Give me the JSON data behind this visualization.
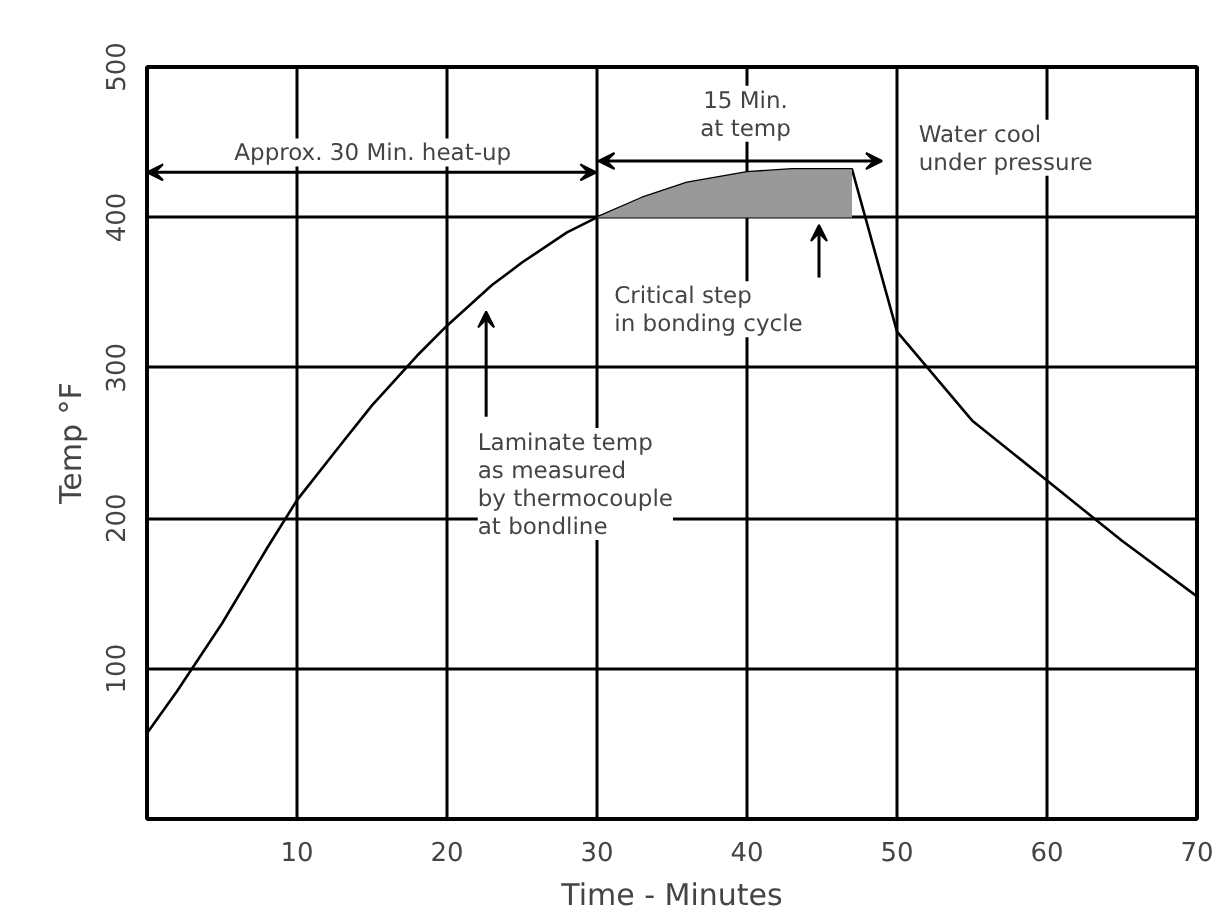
{
  "chart_data": {
    "type": "line",
    "xlabel": "Time - Minutes",
    "ylabel": "Temp °F",
    "xlim": [
      0,
      70
    ],
    "xticks": [
      10,
      20,
      30,
      40,
      50,
      60,
      70
    ],
    "ylim": [
      0,
      500
    ],
    "yticks": [
      100,
      200,
      300,
      400,
      500
    ],
    "grid": true,
    "marker": "none",
    "line_style": "solid",
    "series": [
      {
        "color": "#000000",
        "x": [
          0,
          2,
          5,
          8,
          10,
          13,
          15,
          18,
          20,
          23,
          25,
          28,
          30,
          33,
          36,
          40,
          43,
          47,
          50,
          55,
          60,
          65,
          70
        ],
        "values": [
          57,
          85,
          130,
          180,
          212,
          250,
          275,
          308,
          328,
          355,
          370,
          390,
          400,
          413,
          423,
          430,
          432,
          432,
          324,
          265,
          225,
          185,
          148
        ],
        "lower": [
          null,
          null,
          null,
          null,
          null,
          null,
          null,
          null,
          null,
          null,
          null,
          null,
          400,
          400,
          400,
          400,
          400,
          400,
          null,
          null,
          null,
          null,
          null
        ],
        "upper": [
          null,
          null,
          null,
          null,
          null,
          null,
          null,
          null,
          null,
          null,
          null,
          null,
          400,
          413,
          423,
          430,
          432,
          432,
          null,
          null,
          null,
          null,
          null
        ]
      }
    ],
    "annotations": [
      "Approx. 30 Min. heat-up",
      "15 Min.\nat temp",
      "Water cool\nunder pressure",
      "Critical step\nin bonding cycle",
      "Laminate temp\nas measured\nby thermocouple\nat bondline"
    ]
  }
}
